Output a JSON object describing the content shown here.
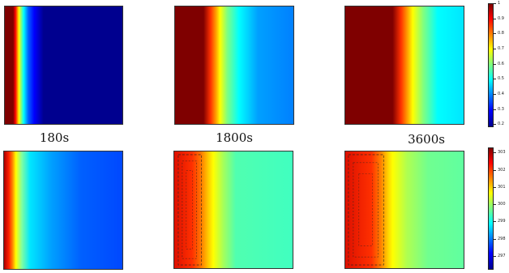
{
  "time_labels": [
    "180s",
    "1800s",
    "3600s"
  ],
  "colorbar_top": {
    "ticks": [
      "1",
      "0.9",
      "0.8",
      "0.7",
      "0.6",
      "0.5",
      "0.4",
      "0.3",
      "0.2"
    ],
    "values": [
      1,
      0.9,
      0.8,
      0.7,
      0.6,
      0.5,
      0.4,
      0.3,
      0.2
    ],
    "range": [
      0.18,
      1.0
    ],
    "colormap": "jet"
  },
  "colorbar_bottom": {
    "ticks": [
      "303",
      "302",
      "301",
      "300",
      "299",
      "298",
      "297"
    ],
    "values": [
      303,
      302,
      301,
      300,
      299,
      298,
      297
    ],
    "range": [
      296.2,
      303.3
    ],
    "colormap": "jet"
  },
  "colors": {
    "jet_dark_red": "#7f0000",
    "jet_red": "#ff0000",
    "jet_yellow": "#ffff00",
    "jet_cyan": "#00ffff",
    "jet_blue": "#0000ff",
    "jet_dark_blue": "#00008f"
  }
}
